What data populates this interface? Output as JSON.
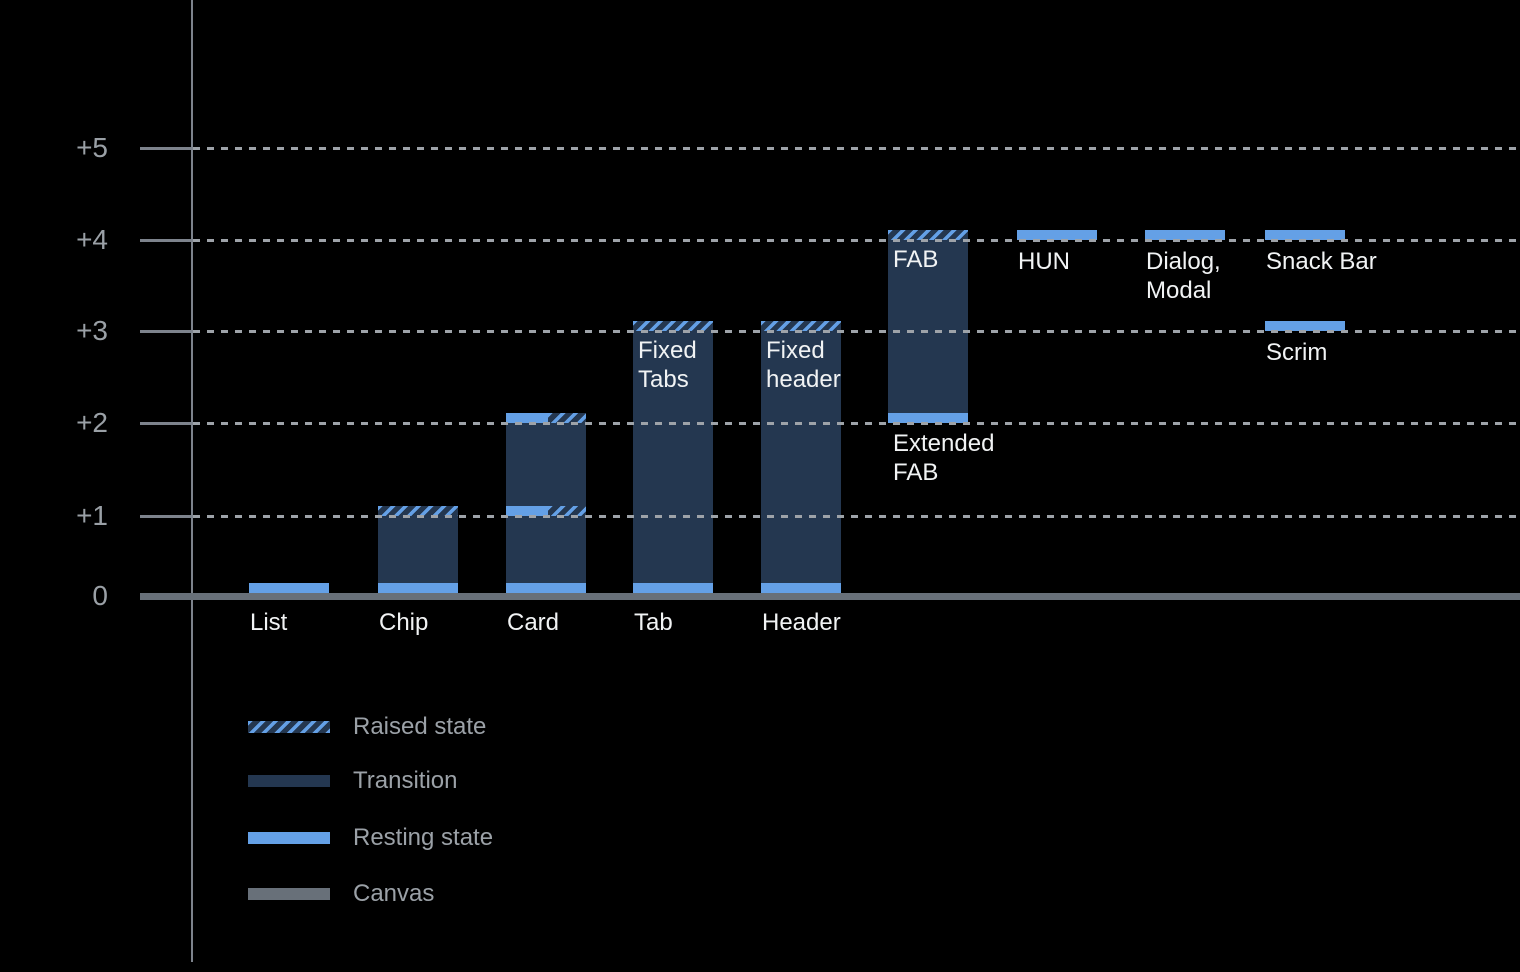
{
  "colors": {
    "background": "#000000",
    "resting_blue": "#64a0e6",
    "transition_navy": "#243750",
    "canvas_gray": "#687079",
    "axis_gray": "#7d838c",
    "grid_dash_gray": "#9ea3a9",
    "tick_label_gray": "#9aa0a6",
    "legend_text_gray": "#9ba1a7",
    "component_label_white": "#f1f3f4"
  },
  "chart_data": {
    "type": "bar",
    "title": "",
    "xlabel": "",
    "ylabel": "",
    "ytick_labels": [
      "+5",
      "+4",
      "+3",
      "+2",
      "+1",
      "0"
    ],
    "ylim": [
      0,
      5.5
    ],
    "grid": "dotted horizontal lines at +1 through +5",
    "legend_position": "bottom-left",
    "baseline": "canvas at 0",
    "components": [
      {
        "col": 0,
        "axis_label": "List",
        "resting_level": 0,
        "raised_level": null,
        "segments": [
          {
            "kind": "resting",
            "level": 0
          }
        ]
      },
      {
        "col": 1,
        "axis_label": "Chip",
        "resting_level": 0,
        "raised_level": 1,
        "segments": [
          {
            "kind": "resting",
            "level": 0
          },
          {
            "kind": "transition",
            "from": 0,
            "to": 1
          },
          {
            "kind": "raised",
            "level": 1
          }
        ]
      },
      {
        "col": 2,
        "axis_label": "Card",
        "resting_level": 0,
        "raised_level": 2,
        "segments": [
          {
            "kind": "resting",
            "level": 0
          },
          {
            "kind": "transition",
            "from": 0,
            "to": 1
          },
          {
            "kind": "resting-raised",
            "level": 1
          },
          {
            "kind": "transition",
            "from": 1,
            "to": 2
          },
          {
            "kind": "resting-raised",
            "level": 2
          }
        ]
      },
      {
        "col": 3,
        "axis_label": "Tab",
        "bar_label": [
          "Fixed",
          "Tabs"
        ],
        "resting_level": 0,
        "raised_level": 3,
        "segments": [
          {
            "kind": "resting",
            "level": 0
          },
          {
            "kind": "transition",
            "from": 0,
            "to": 3
          },
          {
            "kind": "raised",
            "level": 3
          }
        ]
      },
      {
        "col": 4,
        "axis_label": "Header",
        "bar_label": [
          "Fixed",
          "header"
        ],
        "resting_level": 0,
        "raised_level": 3,
        "segments": [
          {
            "kind": "resting",
            "level": 0
          },
          {
            "kind": "transition",
            "from": 0,
            "to": 3
          },
          {
            "kind": "raised",
            "level": 3
          }
        ]
      },
      {
        "col": 5,
        "bar_label": [
          "FAB"
        ],
        "under_label": [
          "Extended",
          "FAB"
        ],
        "resting_level": 2,
        "raised_level": 4,
        "segments": [
          {
            "kind": "resting",
            "level": 2
          },
          {
            "kind": "transition",
            "from": 2,
            "to": 4
          },
          {
            "kind": "raised",
            "level": 4
          }
        ]
      },
      {
        "col": 6,
        "float_label": [
          "HUN"
        ],
        "resting_level": 4,
        "raised_level": null,
        "segments": [
          {
            "kind": "resting",
            "level": 4
          }
        ]
      },
      {
        "col": 7,
        "float_label": [
          "Dialog,",
          "Modal"
        ],
        "resting_level": 4,
        "raised_level": null,
        "segments": [
          {
            "kind": "resting",
            "level": 4
          }
        ]
      },
      {
        "col": 8,
        "float_label": [
          "Snack Bar"
        ],
        "resting_level": 4,
        "raised_level": null,
        "segments": [
          {
            "kind": "resting",
            "level": 4
          }
        ]
      },
      {
        "col": 8,
        "float_label": [
          "Scrim"
        ],
        "resting_level": 3,
        "raised_level": null,
        "segments": [
          {
            "kind": "resting",
            "level": 3
          }
        ]
      }
    ]
  },
  "legend": {
    "items": [
      {
        "swatch": "raised",
        "label": "Raised state"
      },
      {
        "swatch": "transition",
        "label": "Transition"
      },
      {
        "swatch": "resting",
        "label": "Resting state"
      },
      {
        "swatch": "canvas",
        "label": "Canvas"
      }
    ]
  }
}
